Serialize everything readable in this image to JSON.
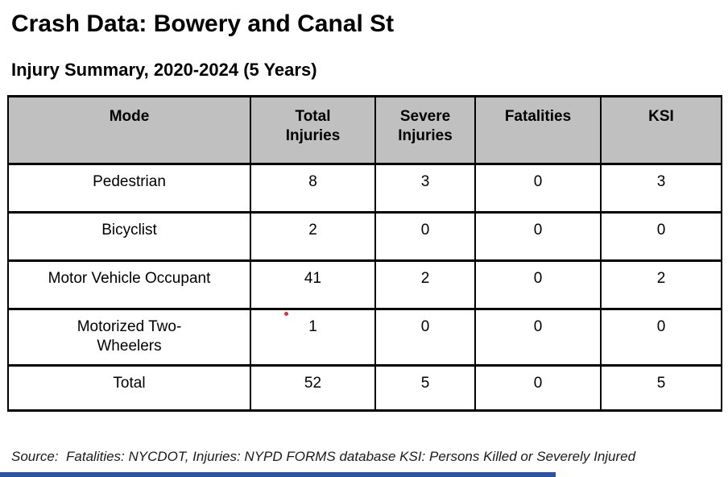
{
  "page": {
    "title": "Crash Data: Bowery and Canal St",
    "subtitle": "Injury Summary, 2020-2024 (5 Years)",
    "source_note": "Source:  Fatalities: NYCDOT, Injuries: NYPD FORMS database KSI: Persons Killed or Severely Injured"
  },
  "table": {
    "header": [
      "Mode",
      "Total\nInjuries",
      "Severe\nInjuries",
      "Fatalities",
      "KSI"
    ],
    "rows": [
      [
        "Pedestrian",
        "8",
        "3",
        "0",
        "3"
      ],
      [
        "Bicyclist",
        "2",
        "0",
        "0",
        "0"
      ],
      [
        "Motor Vehicle Occupant",
        "41",
        "2",
        "0",
        "2"
      ],
      [
        "Motorized Two-\nWheelers",
        "1",
        "0",
        "0",
        "0"
      ],
      [
        "Total",
        "52",
        "5",
        "0",
        "5"
      ]
    ]
  },
  "chart_data": {
    "type": "table",
    "title": "Injury Summary, 2020-2024 (5 Years)",
    "columns": [
      "Mode",
      "Total Injuries",
      "Severe Injuries",
      "Fatalities",
      "KSI"
    ],
    "rows": [
      [
        "Pedestrian",
        8,
        3,
        0,
        3
      ],
      [
        "Bicyclist",
        2,
        0,
        0,
        0
      ],
      [
        "Motor Vehicle Occupant",
        41,
        2,
        0,
        2
      ],
      [
        "Motorized Two-Wheelers",
        1,
        0,
        0,
        0
      ],
      [
        "Total",
        52,
        5,
        0,
        5
      ]
    ]
  },
  "colors": {
    "table_header_bg": "#c0c0c0",
    "table_border": "#000000",
    "annotation_dot": "#dd3333",
    "bottom_bar": "#2e53a0",
    "text": "#000000"
  }
}
